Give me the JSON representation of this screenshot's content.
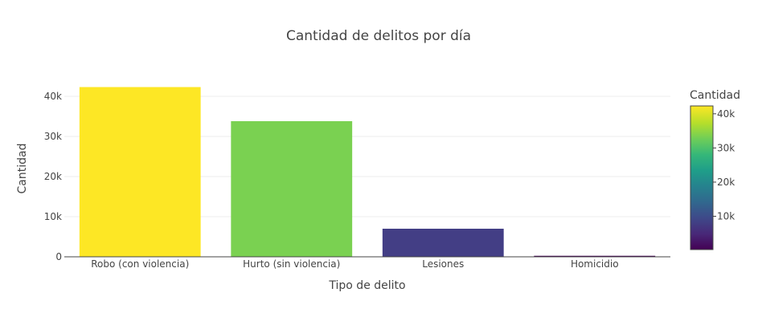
{
  "chart_data": {
    "type": "bar",
    "title": "Cantidad de delitos por día",
    "xlabel": "Tipo de delito",
    "ylabel": "Cantidad",
    "categories": [
      "Robo (con violencia)",
      "Hurto (sin violencia)",
      "Lesiones",
      "Homicidio"
    ],
    "values": [
      42300,
      33800,
      7000,
      250
    ],
    "ylim": [
      0,
      44000
    ],
    "yticks": [
      0,
      10000,
      20000,
      30000,
      40000
    ],
    "ytick_labels": [
      "0",
      "10k",
      "20k",
      "30k",
      "40k"
    ],
    "grid": true,
    "colorscale": "viridis",
    "colorbar": {
      "title": "Cantidad",
      "range": [
        250,
        42300
      ],
      "ticks": [
        10000,
        20000,
        30000,
        40000
      ],
      "tick_labels": [
        "10k",
        "20k",
        "30k",
        "40k"
      ]
    },
    "bar_colors": [
      "#fde725",
      "#7ad151",
      "#433e85",
      "#440154"
    ]
  }
}
